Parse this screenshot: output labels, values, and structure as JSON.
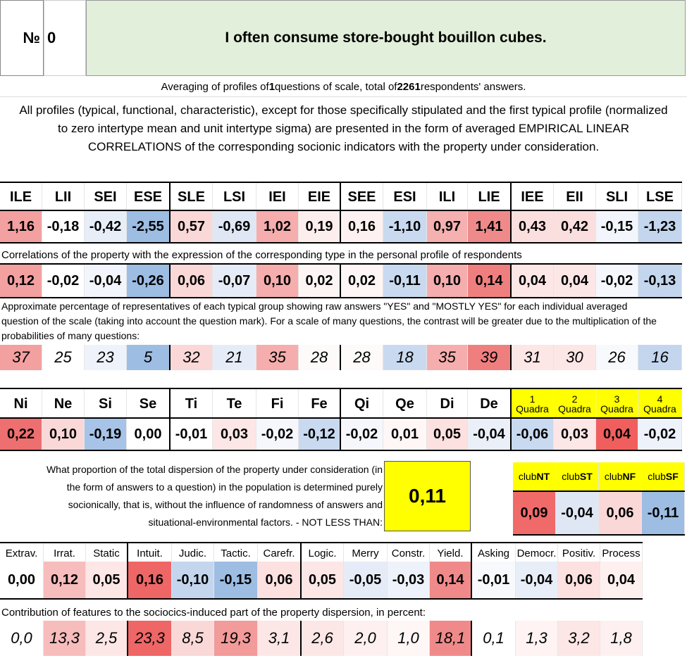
{
  "header": {
    "no_label": "№",
    "number": "0",
    "title": "I often consume store-bought bouillon cubes."
  },
  "averaging": {
    "pre": "Averaging of profiles of ",
    "questions": "1",
    "mid": " questions of scale, total of ",
    "total": "2261",
    "post": " respondents' answers."
  },
  "description": "All profiles (typical, functional, characteristic), except for those specifically stipulated and the first typical profile (normalized to zero intertype mean and unit intertype sigma) are presented in the form of averaged EMPIRICAL LINEAR CORRELATIONS of the corresponding socionic indicators with the property under consideration.",
  "types": [
    "ILE",
    "LII",
    "SEI",
    "ESE",
    "SLE",
    "LSI",
    "IEI",
    "EIE",
    "SEE",
    "ESI",
    "ILI",
    "LIE",
    "IEE",
    "EII",
    "SLI",
    "LSE"
  ],
  "type_profile": [
    "1,16",
    "-0,18",
    "-0,42",
    "-2,55",
    "0,57",
    "-0,69",
    "1,02",
    "0,19",
    "0,16",
    "-1,10",
    "0,97",
    "1,41",
    "0,43",
    "0,42",
    "-0,15",
    "-1,23"
  ],
  "type_profile_colors": [
    "#f3a0a0",
    "#ffffff",
    "#e8eef8",
    "#9dbde3",
    "#fad8d8",
    "#dfe7f5",
    "#f5adad",
    "#fdeeee",
    "#fef1f1",
    "#c9daf0",
    "#f5b0b0",
    "#ef8a8a",
    "#fbdede",
    "#fbdede",
    "#f2f5fb",
    "#c4d6ee"
  ],
  "corr_note": "Correlations of the property with the expression of the corresponding type in the personal profile of respondents",
  "corr_values": [
    "0,12",
    "-0,02",
    "-0,04",
    "-0,26",
    "0,06",
    "-0,07",
    "0,10",
    "0,02",
    "0,02",
    "-0,11",
    "0,10",
    "0,14",
    "0,04",
    "0,04",
    "-0,02",
    "-0,13"
  ],
  "corr_colors": [
    "#f3a0a0",
    "#ffffff",
    "#f2f5fb",
    "#9dbde3",
    "#fad8d8",
    "#e6ecf7",
    "#f5adad",
    "#fdf4f4",
    "#fef5f5",
    "#c9daf0",
    "#f5adad",
    "#ef7f7f",
    "#fde6e6",
    "#fde6e6",
    "#f5f7fc",
    "#c4d6ee"
  ],
  "pct_note": "Approximate percentage of representatives of each typical group showing raw answers \"YES\" and \"MOSTLY YES\" for each individual averaged question of the scale (taking into account the question mark). For a scale of many questions, the contrast will be greater due to the multiplication of the probabilities of many questions:",
  "pct_values": [
    "37",
    "25",
    "23",
    "5",
    "32",
    "21",
    "35",
    "28",
    "28",
    "18",
    "35",
    "39",
    "31",
    "30",
    "26",
    "16"
  ],
  "pct_colors": [
    "#f3a0a0",
    "#ffffff",
    "#eef2fa",
    "#9dbde3",
    "#fad8d8",
    "#e6ecf7",
    "#f5adad",
    "#fefafa",
    "#fefafa",
    "#c9daf0",
    "#f5adad",
    "#ef7f7f",
    "#fde6e6",
    "#fde6e6",
    "#f8f9fd",
    "#c4d6ee"
  ],
  "functions": [
    "Ni",
    "Ne",
    "Si",
    "Se",
    "Ti",
    "Te",
    "Fi",
    "Fe",
    "Qi",
    "Qe",
    "Di",
    "De"
  ],
  "quadra_headers": [
    {
      "n": "1",
      "l": "Quadra"
    },
    {
      "n": "2",
      "l": "Quadra"
    },
    {
      "n": "3",
      "l": "Quadra"
    },
    {
      "n": "4",
      "l": "Quadra"
    }
  ],
  "function_values": [
    "0,22",
    "0,10",
    "-0,19",
    "0,00",
    "-0,01",
    "0,03",
    "-0,02",
    "-0,12",
    "-0,02",
    "0,01",
    "0,05",
    "-0,04",
    "-0,06",
    "0,03",
    "0,04",
    "-0,02"
  ],
  "function_colors": [
    "#ee6f6f",
    "#fad8d8",
    "#a7c3e7",
    "#ffffff",
    "#ffffff",
    "#fde6e6",
    "#f5f7fc",
    "#c9daf0",
    "#f5f7fc",
    "#fff6f6",
    "#fde0e0",
    "#eaeff8",
    "#c9daf0",
    "#fde6e6",
    "#f15e5e",
    "#eef2fa"
  ],
  "proportion_question": "What proportion of the total dispersion of the property under consideration (in the form of answers to a question) in the population is determined purely socionically, that is, without the influence of randomness of answers and situational-environmental factors. - NOT LESS THAN:",
  "proportion_value": "0,11",
  "clubs": [
    {
      "pre": "club",
      "b": "NT"
    },
    {
      "pre": "club",
      "b": "ST"
    },
    {
      "pre": "club",
      "b": "NF"
    },
    {
      "pre": "club",
      "b": "SF"
    }
  ],
  "club_values": [
    "0,09",
    "-0,04",
    "0,06",
    "-0,11"
  ],
  "club_colors": [
    "#f06a6a",
    "#dfe7f5",
    "#fad8d8",
    "#9dbde3"
  ],
  "features": [
    "Extrav.",
    "Irrat.",
    "Static",
    "Intuit.",
    "Judic.",
    "Tactic.",
    "Carefr.",
    "Logic.",
    "Merry",
    "Constr.",
    "Yield.",
    "Asking",
    "Democr.",
    "Positiv.",
    "Process"
  ],
  "feature_values": [
    "0,00",
    "0,12",
    "0,05",
    "0,16",
    "-0,10",
    "-0,15",
    "0,06",
    "0,05",
    "-0,05",
    "-0,03",
    "0,14",
    "-0,01",
    "-0,04",
    "0,06",
    "0,04"
  ],
  "feature_colors": [
    "#ffffff",
    "#f7bcbc",
    "#fde6e6",
    "#ef6666",
    "#c4d6ee",
    "#9dbde3",
    "#fde0e0",
    "#fde6e6",
    "#e6ecf7",
    "#eef2fa",
    "#f08a8a",
    "#f8f9fd",
    "#e8eef8",
    "#fde0e0",
    "#fff0f0"
  ],
  "contrib_note": "Contribution of features to the sociocics-induced part of the property dispersion, in percent:",
  "contrib_values": [
    "0,0",
    "13,3",
    "2,5",
    "23,3",
    "8,5",
    "19,3",
    "3,1",
    "2,6",
    "2,0",
    "1,0",
    "18,1",
    "0,1",
    "1,3",
    "3,2",
    "1,8"
  ],
  "contrib_colors": [
    "#ffffff",
    "#f7bcbc",
    "#fde6e6",
    "#ef6666",
    "#fad8d8",
    "#f39a9a",
    "#fde6e6",
    "#fde6e6",
    "#fef0f0",
    "#fff6f6",
    "#f08a8a",
    "#ffffff",
    "#fff3f3",
    "#fde6e6",
    "#fef0f0"
  ]
}
